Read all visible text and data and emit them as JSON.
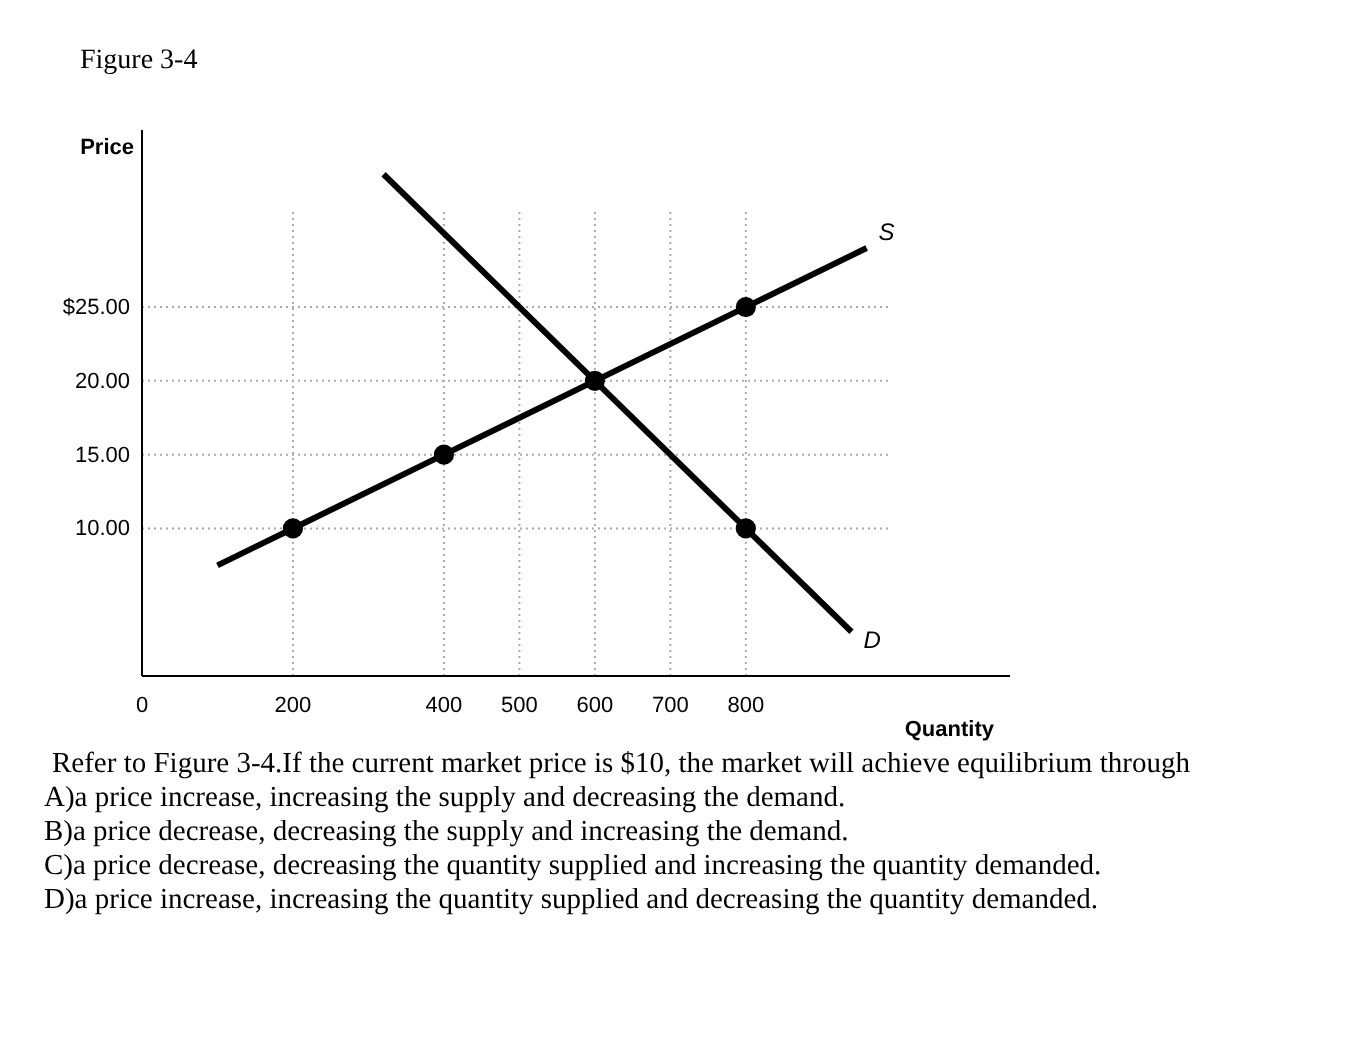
{
  "chart_data": {
    "type": "line",
    "title": "Figure 3-4",
    "xlabel": "Quantity",
    "ylabel": "Price",
    "xlim": [
      0,
      1150
    ],
    "xticks": [
      0,
      200,
      400,
      500,
      600,
      700,
      800
    ],
    "ylim": [
      0,
      37
    ],
    "yticks": [
      {
        "value": 10,
        "label": "10.00"
      },
      {
        "value": 15,
        "label": "15.00"
      },
      {
        "value": 20,
        "label": "20.00"
      },
      {
        "value": 25,
        "label": "$25.00"
      }
    ],
    "grid": true,
    "line_style": "solid",
    "series": [
      {
        "name": "S",
        "color": "#000000",
        "x": [
          100,
          200,
          400,
          600,
          800,
          960
        ],
        "values": [
          7.5,
          10,
          15,
          20,
          25,
          29
        ]
      },
      {
        "name": "D",
        "color": "#000000",
        "x": [
          320,
          600,
          800,
          940
        ],
        "values": [
          34,
          20,
          10,
          3
        ]
      },
      {
        "type": "scatter",
        "marker": "circle",
        "color": "#000000",
        "x": [
          200,
          400,
          600,
          800,
          800
        ],
        "values": [
          10,
          15,
          20,
          25,
          10
        ]
      }
    ],
    "annotations": [
      "Refer to Figure 3-4.If the current market price is $10, the market will achieve equilibrium through",
      "A)a price increase, increasing the supply and decreasing the demand.",
      "B)a price decrease, decreasing the supply and increasing the demand.",
      "C)a price decrease, decreasing the quantity supplied and increasing the quantity demanded.",
      "D)a price increase, increasing the quantity supplied and decreasing the quantity demanded."
    ]
  }
}
